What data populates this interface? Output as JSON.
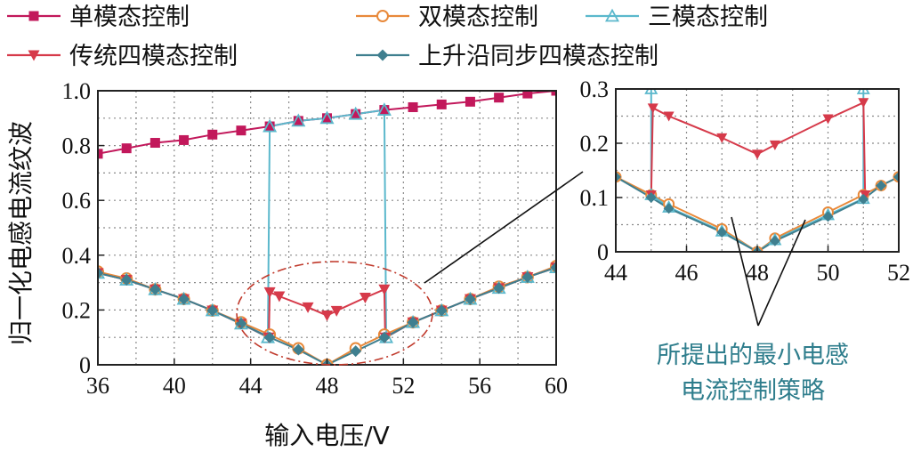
{
  "chart_data": [
    {
      "type": "line",
      "panel": "main",
      "xlabel": "输入电压/V",
      "ylabel": "归一化电感电流纹波",
      "xlim": [
        36,
        60
      ],
      "ylim": [
        0,
        1.0
      ],
      "xticks": [
        36,
        40,
        44,
        48,
        52,
        56,
        60
      ],
      "yticks": [
        0,
        0.2,
        0.4,
        0.6,
        0.8,
        1.0
      ],
      "xtick_labels": [
        "36",
        "40",
        "44",
        "48",
        "52",
        "56",
        "60"
      ],
      "ytick_labels": [
        "0",
        "0.2",
        "0.4",
        "0.6",
        "0.8",
        "1.0"
      ],
      "grid": true,
      "series": [
        {
          "name": "单模态控制",
          "color": "#c2185b",
          "marker": "square",
          "x": [
            36,
            37.5,
            39,
            40.5,
            42,
            43.5,
            45,
            46.5,
            48,
            49.5,
            51,
            52.5,
            54,
            55.5,
            57,
            58.5,
            60
          ],
          "y": [
            0.77,
            0.79,
            0.81,
            0.82,
            0.84,
            0.855,
            0.87,
            0.89,
            0.9,
            0.915,
            0.93,
            0.94,
            0.95,
            0.96,
            0.975,
            0.99,
            1.0
          ]
        },
        {
          "name": "双模态控制",
          "color": "#e8893a",
          "marker": "circle",
          "x": [
            36,
            37.5,
            39,
            40.5,
            42,
            43.5,
            45,
            46.5,
            48,
            49.5,
            51,
            52.5,
            54,
            55.5,
            57,
            58.5,
            60
          ],
          "y": [
            0.34,
            0.315,
            0.275,
            0.24,
            0.198,
            0.155,
            0.11,
            0.06,
            0.0,
            0.06,
            0.11,
            0.155,
            0.198,
            0.24,
            0.285,
            0.32,
            0.36
          ]
        },
        {
          "name": "三模态控制",
          "color": "#5bb8cc",
          "marker": "triangle-up",
          "x": [
            36,
            37.5,
            39,
            40.5,
            42,
            43.5,
            44.9,
            45,
            46.5,
            48,
            49.5,
            51,
            51.1,
            52.5,
            54,
            55.5,
            57,
            58.5,
            60
          ],
          "y": [
            0.335,
            0.31,
            0.275,
            0.24,
            0.198,
            0.15,
            0.1,
            0.87,
            0.89,
            0.9,
            0.915,
            0.93,
            0.1,
            0.155,
            0.198,
            0.24,
            0.28,
            0.32,
            0.355
          ]
        },
        {
          "name": "传统四模态控制",
          "color": "#d63a4a",
          "marker": "triangle-down",
          "x": [
            36,
            37.5,
            39,
            40.5,
            42,
            43.5,
            44.95,
            45,
            45.5,
            47,
            48,
            48.5,
            50,
            51,
            51.05,
            52.5,
            54,
            55.5,
            57,
            58.5,
            60
          ],
          "y": [
            0.335,
            0.31,
            0.275,
            0.24,
            0.198,
            0.15,
            0.1,
            0.265,
            0.25,
            0.21,
            0.18,
            0.197,
            0.245,
            0.275,
            0.1,
            0.155,
            0.198,
            0.24,
            0.28,
            0.32,
            0.355
          ]
        },
        {
          "name": "上升沿同步四模态控制",
          "color": "#3f7f8f",
          "marker": "diamond",
          "x": [
            36,
            37.5,
            39,
            40.5,
            42,
            43.5,
            45,
            46.5,
            48,
            49.5,
            51,
            52.5,
            54,
            55.5,
            57,
            58.5,
            60
          ],
          "y": [
            0.335,
            0.31,
            0.275,
            0.24,
            0.198,
            0.15,
            0.1,
            0.055,
            0.0,
            0.05,
            0.1,
            0.155,
            0.198,
            0.24,
            0.28,
            0.32,
            0.355
          ]
        }
      ]
    },
    {
      "type": "line",
      "panel": "inset",
      "xlim": [
        44,
        52
      ],
      "ylim": [
        0,
        0.3
      ],
      "xticks": [
        44,
        46,
        48,
        50,
        52
      ],
      "yticks": [
        0,
        0.1,
        0.2,
        0.3
      ],
      "xtick_labels": [
        "44",
        "46",
        "48",
        "50",
        "52"
      ],
      "ytick_labels": [
        "0",
        "0.1",
        "0.2",
        "0.3"
      ],
      "grid": true,
      "series": [
        {
          "name": "双模态控制",
          "color": "#e8893a",
          "marker": "circle",
          "x": [
            44,
            45,
            45.5,
            47,
            48,
            48.5,
            50,
            51,
            51.5,
            52
          ],
          "y": [
            0.138,
            0.105,
            0.088,
            0.042,
            0.0,
            0.025,
            0.073,
            0.105,
            0.122,
            0.138
          ]
        },
        {
          "name": "三模态控制",
          "color": "#5bb8cc",
          "marker": "triangle-up",
          "x": [
            45,
            45,
            45.5,
            47,
            48,
            48.5,
            50,
            51,
            51
          ],
          "y": [
            0.3,
            0.105,
            0.082,
            0.038,
            0.0,
            0.022,
            0.068,
            0.098,
            0.3
          ]
        },
        {
          "name": "传统四模态控制",
          "color": "#d63a4a",
          "marker": "triangle-down",
          "x": [
            45,
            45.05,
            45.5,
            47,
            48,
            48.5,
            50,
            51,
            51.05
          ],
          "y": [
            0.105,
            0.265,
            0.25,
            0.21,
            0.18,
            0.197,
            0.245,
            0.275,
            0.105
          ]
        },
        {
          "name": "上升沿同步四模态控制",
          "color": "#3f7f8f",
          "marker": "diamond",
          "x": [
            44,
            45,
            45.5,
            47,
            48,
            48.5,
            50,
            51,
            51.5,
            52
          ],
          "y": [
            0.138,
            0.1,
            0.08,
            0.036,
            0.0,
            0.02,
            0.065,
            0.097,
            0.122,
            0.138
          ]
        }
      ]
    }
  ],
  "annotation": {
    "line1": "所提出的最小电感",
    "line2": "电流控制策略"
  }
}
